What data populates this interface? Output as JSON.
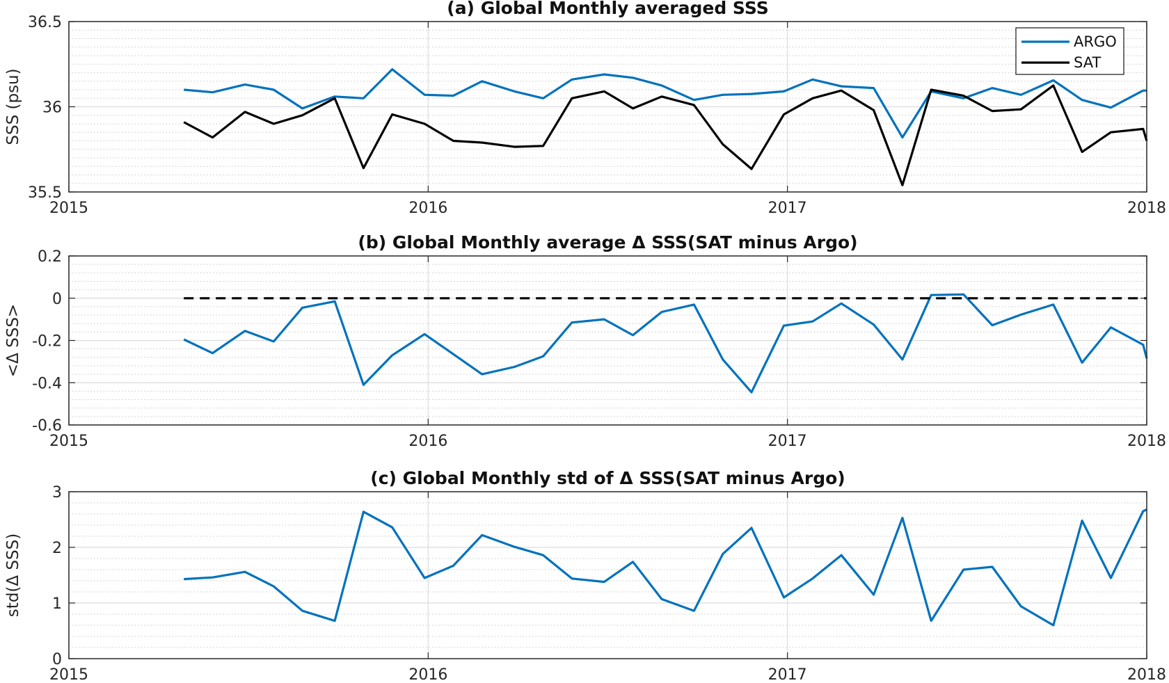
{
  "chart_data": [
    {
      "type": "line",
      "title": "(a) Global Monthly averaged SSS",
      "ylabel": "SSS (psu)",
      "xlabel": "",
      "xlim": [
        2015,
        2018
      ],
      "ylim": [
        35.5,
        36.5
      ],
      "x_ticks": [
        2015,
        2016,
        2017,
        2018
      ],
      "x_tick_labels": [
        "2015",
        "2016",
        "2017",
        "2018"
      ],
      "y_ticks": [
        35.5,
        36,
        36.5
      ],
      "y_tick_labels": [
        "35.5",
        "36",
        "36.5"
      ],
      "y_minor_step": 0.05,
      "grid": true,
      "legend": "top-right",
      "x": [
        2015.32,
        2015.4,
        2015.49,
        2015.57,
        2015.65,
        2015.74,
        2015.82,
        2015.9,
        2015.99,
        2016.07,
        2016.15,
        2016.24,
        2016.32,
        2016.4,
        2016.49,
        2016.57,
        2016.65,
        2016.74,
        2016.82,
        2016.9,
        2016.99,
        2017.07,
        2017.15,
        2017.24,
        2017.32,
        2017.4,
        2017.49,
        2017.57,
        2017.65,
        2017.74,
        2017.82,
        2017.9,
        2017.99,
        2018.0
      ],
      "series": [
        {
          "name": "ARGO",
          "color": "#0072BD",
          "dashed": false,
          "values": [
            36.1,
            36.085,
            36.13,
            36.1,
            35.99,
            36.06,
            36.05,
            36.22,
            36.07,
            36.065,
            36.15,
            36.09,
            36.05,
            36.16,
            36.19,
            36.17,
            36.125,
            36.04,
            36.07,
            36.075,
            36.09,
            36.16,
            36.12,
            36.11,
            35.82,
            36.09,
            36.05,
            36.11,
            36.07,
            36.155,
            36.04,
            35.995,
            36.095,
            36.095
          ]
        },
        {
          "name": "SAT",
          "color": "#000000",
          "dashed": false,
          "values": [
            35.91,
            35.82,
            35.97,
            35.9,
            35.95,
            36.05,
            35.64,
            35.955,
            35.9,
            35.8,
            35.79,
            35.765,
            35.77,
            36.05,
            36.09,
            35.99,
            36.06,
            36.01,
            35.78,
            35.635,
            35.955,
            36.05,
            36.095,
            35.98,
            35.54,
            36.1,
            36.065,
            35.975,
            35.985,
            36.125,
            35.735,
            35.85,
            35.87,
            35.8
          ]
        }
      ]
    },
    {
      "type": "line",
      "title": "(b) Global Monthly average Δ SSS(SAT minus Argo)",
      "ylabel": "<Δ SSS>",
      "xlabel": "",
      "xlim": [
        2015,
        2018
      ],
      "ylim": [
        -0.6,
        0.2
      ],
      "x_ticks": [
        2015,
        2016,
        2017,
        2018
      ],
      "x_tick_labels": [
        "2015",
        "2016",
        "2017",
        "2018"
      ],
      "y_ticks": [
        -0.6,
        -0.4,
        -0.2,
        0,
        0.2
      ],
      "y_tick_labels": [
        "-0.6",
        "-0.4",
        "-0.2",
        "0",
        "0.2"
      ],
      "y_minor_step": 0.04,
      "grid": true,
      "legend": "none",
      "x": [
        2015.32,
        2015.4,
        2015.49,
        2015.57,
        2015.65,
        2015.74,
        2015.82,
        2015.9,
        2015.99,
        2016.07,
        2016.15,
        2016.24,
        2016.32,
        2016.4,
        2016.49,
        2016.57,
        2016.65,
        2016.74,
        2016.82,
        2016.9,
        2016.99,
        2017.07,
        2017.15,
        2017.24,
        2017.32,
        2017.4,
        2017.49,
        2017.57,
        2017.65,
        2017.74,
        2017.82,
        2017.9,
        2017.99,
        2018.0
      ],
      "series": [
        {
          "name": "",
          "color": "#0072BD",
          "dashed": false,
          "values": [
            -0.195,
            -0.26,
            -0.155,
            -0.205,
            -0.045,
            -0.015,
            -0.41,
            -0.27,
            -0.17,
            -0.265,
            -0.36,
            -0.325,
            -0.275,
            -0.115,
            -0.1,
            -0.175,
            -0.065,
            -0.03,
            -0.29,
            -0.445,
            -0.13,
            -0.11,
            -0.025,
            -0.125,
            -0.29,
            0.015,
            0.018,
            -0.128,
            -0.078,
            -0.03,
            -0.305,
            -0.138,
            -0.22,
            -0.285
          ]
        },
        {
          "name": "",
          "color": "#000000",
          "dashed": true,
          "x": [
            2015.32,
            2018.0
          ],
          "values": [
            0,
            0
          ]
        }
      ]
    },
    {
      "type": "line",
      "title": "(c) Global Monthly std of Δ SSS(SAT minus Argo)",
      "ylabel": "std(Δ SSS)",
      "xlabel": "",
      "xlim": [
        2015,
        2018
      ],
      "ylim": [
        0,
        3
      ],
      "x_ticks": [
        2015,
        2016,
        2017,
        2018
      ],
      "x_tick_labels": [
        "2015",
        "2016",
        "2017",
        "2018"
      ],
      "y_ticks": [
        0,
        1,
        2,
        3
      ],
      "y_tick_labels": [
        "0",
        "1",
        "2",
        "3"
      ],
      "y_minor_step": 0.2,
      "grid": true,
      "legend": "none",
      "x": [
        2015.32,
        2015.4,
        2015.49,
        2015.57,
        2015.65,
        2015.74,
        2015.82,
        2015.9,
        2015.99,
        2016.07,
        2016.15,
        2016.24,
        2016.32,
        2016.4,
        2016.49,
        2016.57,
        2016.65,
        2016.74,
        2016.82,
        2016.9,
        2016.99,
        2017.07,
        2017.15,
        2017.24,
        2017.32,
        2017.4,
        2017.49,
        2017.57,
        2017.65,
        2017.74,
        2017.82,
        2017.9,
        2017.99,
        2018.0
      ],
      "series": [
        {
          "name": "",
          "color": "#0072BD",
          "dashed": false,
          "values": [
            1.43,
            1.46,
            1.56,
            1.3,
            0.86,
            0.68,
            2.64,
            2.36,
            1.45,
            1.67,
            2.22,
            2.01,
            1.86,
            1.44,
            1.38,
            1.74,
            1.07,
            0.86,
            1.88,
            2.35,
            1.1,
            1.44,
            1.86,
            1.15,
            2.53,
            0.68,
            1.6,
            1.65,
            0.94,
            0.6,
            2.48,
            1.45,
            2.65,
            2.68
          ]
        }
      ]
    }
  ]
}
